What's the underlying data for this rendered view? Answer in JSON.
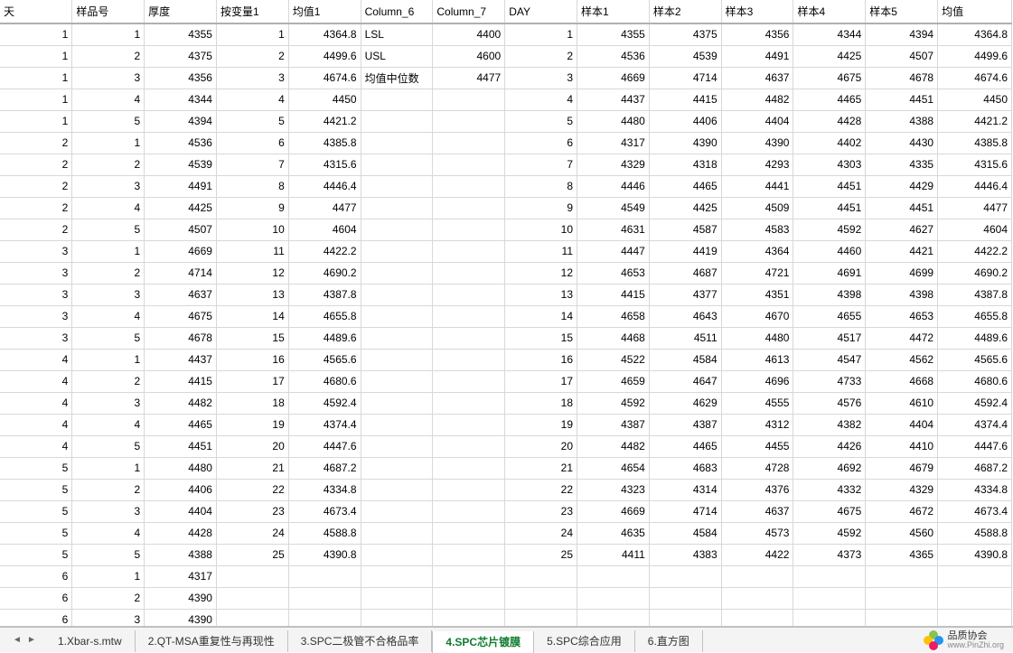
{
  "headers": [
    "天",
    "样品号",
    "厚度",
    "按变量1",
    "均值1",
    "Column_6",
    "Column_7",
    "DAY",
    "样本1",
    "样本2",
    "样本3",
    "样本4",
    "样本5",
    "均值"
  ],
  "col6_labels": [
    "LSL",
    "USL",
    "均值中位数"
  ],
  "col7_values": [
    4400,
    4600,
    4477
  ],
  "rows": [
    {
      "c1": 1,
      "c2": 1,
      "c3": 4355,
      "c4": 1,
      "c5": "4364.8",
      "c8": 1,
      "c9": 4355,
      "c10": 4375,
      "c11": 4356,
      "c12": 4344,
      "c13": 4394,
      "c14": "4364.8"
    },
    {
      "c1": 1,
      "c2": 2,
      "c3": 4375,
      "c4": 2,
      "c5": "4499.6",
      "c8": 2,
      "c9": 4536,
      "c10": 4539,
      "c11": 4491,
      "c12": 4425,
      "c13": 4507,
      "c14": "4499.6"
    },
    {
      "c1": 1,
      "c2": 3,
      "c3": 4356,
      "c4": 3,
      "c5": "4674.6",
      "c8": 3,
      "c9": 4669,
      "c10": 4714,
      "c11": 4637,
      "c12": 4675,
      "c13": 4678,
      "c14": "4674.6"
    },
    {
      "c1": 1,
      "c2": 4,
      "c3": 4344,
      "c4": 4,
      "c5": "4450",
      "c8": 4,
      "c9": 4437,
      "c10": 4415,
      "c11": 4482,
      "c12": 4465,
      "c13": 4451,
      "c14": "4450"
    },
    {
      "c1": 1,
      "c2": 5,
      "c3": 4394,
      "c4": 5,
      "c5": "4421.2",
      "c8": 5,
      "c9": 4480,
      "c10": 4406,
      "c11": 4404,
      "c12": 4428,
      "c13": 4388,
      "c14": "4421.2"
    },
    {
      "c1": 2,
      "c2": 1,
      "c3": 4536,
      "c4": 6,
      "c5": "4385.8",
      "c8": 6,
      "c9": 4317,
      "c10": 4390,
      "c11": 4390,
      "c12": 4402,
      "c13": 4430,
      "c14": "4385.8"
    },
    {
      "c1": 2,
      "c2": 2,
      "c3": 4539,
      "c4": 7,
      "c5": "4315.6",
      "c8": 7,
      "c9": 4329,
      "c10": 4318,
      "c11": 4293,
      "c12": 4303,
      "c13": 4335,
      "c14": "4315.6"
    },
    {
      "c1": 2,
      "c2": 3,
      "c3": 4491,
      "c4": 8,
      "c5": "4446.4",
      "c8": 8,
      "c9": 4446,
      "c10": 4465,
      "c11": 4441,
      "c12": 4451,
      "c13": 4429,
      "c14": "4446.4"
    },
    {
      "c1": 2,
      "c2": 4,
      "c3": 4425,
      "c4": 9,
      "c5": "4477",
      "c8": 9,
      "c9": 4549,
      "c10": 4425,
      "c11": 4509,
      "c12": 4451,
      "c13": 4451,
      "c14": "4477"
    },
    {
      "c1": 2,
      "c2": 5,
      "c3": 4507,
      "c4": 10,
      "c5": "4604",
      "c8": 10,
      "c9": 4631,
      "c10": 4587,
      "c11": 4583,
      "c12": 4592,
      "c13": 4627,
      "c14": "4604"
    },
    {
      "c1": 3,
      "c2": 1,
      "c3": 4669,
      "c4": 11,
      "c5": "4422.2",
      "c8": 11,
      "c9": 4447,
      "c10": 4419,
      "c11": 4364,
      "c12": 4460,
      "c13": 4421,
      "c14": "4422.2"
    },
    {
      "c1": 3,
      "c2": 2,
      "c3": 4714,
      "c4": 12,
      "c5": "4690.2",
      "c8": 12,
      "c9": 4653,
      "c10": 4687,
      "c11": 4721,
      "c12": 4691,
      "c13": 4699,
      "c14": "4690.2"
    },
    {
      "c1": 3,
      "c2": 3,
      "c3": 4637,
      "c4": 13,
      "c5": "4387.8",
      "c8": 13,
      "c9": 4415,
      "c10": 4377,
      "c11": 4351,
      "c12": 4398,
      "c13": 4398,
      "c14": "4387.8"
    },
    {
      "c1": 3,
      "c2": 4,
      "c3": 4675,
      "c4": 14,
      "c5": "4655.8",
      "c8": 14,
      "c9": 4658,
      "c10": 4643,
      "c11": 4670,
      "c12": 4655,
      "c13": 4653,
      "c14": "4655.8"
    },
    {
      "c1": 3,
      "c2": 5,
      "c3": 4678,
      "c4": 15,
      "c5": "4489.6",
      "c8": 15,
      "c9": 4468,
      "c10": 4511,
      "c11": 4480,
      "c12": 4517,
      "c13": 4472,
      "c14": "4489.6"
    },
    {
      "c1": 4,
      "c2": 1,
      "c3": 4437,
      "c4": 16,
      "c5": "4565.6",
      "c8": 16,
      "c9": 4522,
      "c10": 4584,
      "c11": 4613,
      "c12": 4547,
      "c13": 4562,
      "c14": "4565.6"
    },
    {
      "c1": 4,
      "c2": 2,
      "c3": 4415,
      "c4": 17,
      "c5": "4680.6",
      "c8": 17,
      "c9": 4659,
      "c10": 4647,
      "c11": 4696,
      "c12": 4733,
      "c13": 4668,
      "c14": "4680.6"
    },
    {
      "c1": 4,
      "c2": 3,
      "c3": 4482,
      "c4": 18,
      "c5": "4592.4",
      "c8": 18,
      "c9": 4592,
      "c10": 4629,
      "c11": 4555,
      "c12": 4576,
      "c13": 4610,
      "c14": "4592.4"
    },
    {
      "c1": 4,
      "c2": 4,
      "c3": 4465,
      "c4": 19,
      "c5": "4374.4",
      "c8": 19,
      "c9": 4387,
      "c10": 4387,
      "c11": 4312,
      "c12": 4382,
      "c13": 4404,
      "c14": "4374.4"
    },
    {
      "c1": 4,
      "c2": 5,
      "c3": 4451,
      "c4": 20,
      "c5": "4447.6",
      "c8": 20,
      "c9": 4482,
      "c10": 4465,
      "c11": 4455,
      "c12": 4426,
      "c13": 4410,
      "c14": "4447.6"
    },
    {
      "c1": 5,
      "c2": 1,
      "c3": 4480,
      "c4": 21,
      "c5": "4687.2",
      "c8": 21,
      "c9": 4654,
      "c10": 4683,
      "c11": 4728,
      "c12": 4692,
      "c13": 4679,
      "c14": "4687.2"
    },
    {
      "c1": 5,
      "c2": 2,
      "c3": 4406,
      "c4": 22,
      "c5": "4334.8",
      "c8": 22,
      "c9": 4323,
      "c10": 4314,
      "c11": 4376,
      "c12": 4332,
      "c13": 4329,
      "c14": "4334.8"
    },
    {
      "c1": 5,
      "c2": 3,
      "c3": 4404,
      "c4": 23,
      "c5": "4673.4",
      "c8": 23,
      "c9": 4669,
      "c10": 4714,
      "c11": 4637,
      "c12": 4675,
      "c13": 4672,
      "c14": "4673.4"
    },
    {
      "c1": 5,
      "c2": 4,
      "c3": 4428,
      "c4": 24,
      "c5": "4588.8",
      "c8": 24,
      "c9": 4635,
      "c10": 4584,
      "c11": 4573,
      "c12": 4592,
      "c13": 4560,
      "c14": "4588.8"
    },
    {
      "c1": 5,
      "c2": 5,
      "c3": 4388,
      "c4": 25,
      "c5": "4390.8",
      "c8": 25,
      "c9": 4411,
      "c10": 4383,
      "c11": 4422,
      "c12": 4373,
      "c13": 4365,
      "c14": "4390.8"
    },
    {
      "c1": 6,
      "c2": 1,
      "c3": 4317
    },
    {
      "c1": 6,
      "c2": 2,
      "c3": 4390
    },
    {
      "c1": 6,
      "c2": 3,
      "c3": 4390
    }
  ],
  "tabs": [
    {
      "label": "1.Xbar-s.mtw",
      "active": false
    },
    {
      "label": "2.QT-MSA重复性与再现性",
      "active": false
    },
    {
      "label": "3.SPC二极管不合格品率",
      "active": false
    },
    {
      "label": "4.SPC芯片镀膜",
      "active": true
    },
    {
      "label": "5.SPC综合应用",
      "active": false
    },
    {
      "label": "6.直方图",
      "active": false
    }
  ],
  "logo": {
    "line1": "品质协会",
    "line2": "www.PinZhi.org"
  },
  "logo_colors": {
    "p1": "#8bc34a",
    "p2": "#ffc107",
    "p3": "#2196f3",
    "p4": "#e91e63"
  }
}
